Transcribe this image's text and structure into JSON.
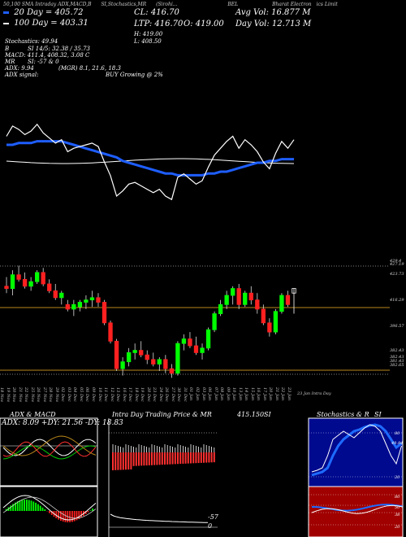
{
  "header": {
    "topline": [
      "50,100 SMA Intraday ADX,MACD,B",
      "SI,Stochastics,MR",
      "(Sirohi...",
      "BEL",
      "Bharat Electron",
      "ics Limit"
    ],
    "sma20": "20 Day = 405.72",
    "sma100": "100 Day = 403.31",
    "close": "CL: 416.70",
    "ltp": "LTP: 416.70",
    "open": "O: 419.00",
    "high": "H: 419.00",
    "low": "L: 408.50",
    "avg_vol": "Avg Vol: 16.877 M",
    "day_vol": "Day Vol: 12.713 M",
    "stoch": "Stochastics: 49.94",
    "b_label": "B",
    "si": "SI 14/5: 32.38 / 35.73",
    "macd": "MACD: 411.4, 408.32, 3.08 C",
    "mr": "MR",
    "si2": "SI: -57 & 0",
    "adx": "ADX: 9.94",
    "adx_signal": "ADX signal:",
    "mgr": "(MGR) 8.1, 21.6, 18.3",
    "buy": "BUY Growing @ 2%"
  },
  "price_labels": [
    "429.4",
    "427.19",
    "423.73",
    "416.29",
    "396.57",
    "382.43",
    "382.43",
    "381.43",
    "382.65"
  ],
  "x_dates": [
    "18 Nov",
    "19 Nov",
    "20 Nov",
    "21 Nov",
    "22 Nov",
    "25 Nov",
    "26 Nov",
    "27 Nov",
    "28 Nov",
    "29 Nov",
    "02 Dec",
    "03 Dec",
    "04 Dec",
    "05 Dec",
    "06 Dec",
    "09 Dec",
    "10 Dec",
    "11 Dec",
    "12 Dec",
    "13 Dec",
    "16 Dec",
    "17 Dec",
    "18 Dec",
    "19 Dec",
    "20 Dec",
    "23 Dec",
    "24 Dec",
    "26 Dec",
    "27 Dec",
    "30 Dec",
    "31 Dec",
    "01 Jan",
    "02 Jan",
    "03 Jan",
    "06 Jan",
    "07 Jan",
    "08 Jan",
    "09 Jan",
    "10 Jan",
    "13 Jan",
    "14 Jan",
    "15 Jan",
    "16 Jan",
    "17 Jan",
    "20 Jan",
    "21 Jan",
    "22 Jan",
    "23 Jan"
  ],
  "x_tail": "23 Jan Intra Day",
  "panels": {
    "adx_title": "ADX & MACD",
    "adx_values": "ADX: 8.09 +DY: 21.56 -DY: 18.83",
    "intraday_title": "Intra Day Trading Price & MR",
    "intraday_price": "415.150",
    "intraday_si": "SI",
    "mr_minus57": "-57",
    "mr_zero": "0",
    "stoch_title": "Stochastics & R",
    "stoch_si": "SI",
    "stoch_levels": [
      "80",
      "49.94",
      "20"
    ],
    "si_levels": [
      "80",
      "50",
      "38",
      "20"
    ]
  },
  "colors": {
    "up": "#00ff00",
    "down": "#ff2020",
    "sma": "#1e5eff",
    "orange": "#b8861b"
  },
  "chart_data": {
    "type": "candlestick",
    "dates": [
      "18 Nov",
      "19 Nov",
      "20 Nov",
      "21 Nov",
      "22 Nov",
      "25 Nov",
      "26 Nov",
      "27 Nov",
      "28 Nov",
      "29 Nov",
      "02 Dec",
      "03 Dec",
      "04 Dec",
      "05 Dec",
      "06 Dec",
      "09 Dec",
      "10 Dec",
      "11 Dec",
      "12 Dec",
      "13 Dec",
      "16 Dec",
      "17 Dec",
      "18 Dec",
      "19 Dec",
      "20 Dec",
      "23 Dec",
      "24 Dec",
      "26 Dec",
      "27 Dec",
      "30 Dec",
      "31 Dec",
      "01 Jan",
      "02 Jan",
      "03 Jan",
      "06 Jan",
      "07 Jan",
      "08 Jan",
      "09 Jan",
      "10 Jan",
      "13 Jan",
      "14 Jan",
      "15 Jan",
      "16 Jan",
      "17 Jan",
      "20 Jan",
      "21 Jan",
      "22 Jan",
      "23 Jan"
    ],
    "ohlc": [
      [
        420,
        424,
        417,
        419
      ],
      [
        419,
        427,
        416,
        425
      ],
      [
        425,
        429,
        422,
        423
      ],
      [
        423,
        426,
        419,
        420
      ],
      [
        420,
        424,
        418,
        422
      ],
      [
        422,
        427,
        421,
        426
      ],
      [
        426,
        428,
        420,
        421
      ],
      [
        421,
        423,
        417,
        418
      ],
      [
        418,
        421,
        414,
        415
      ],
      [
        415,
        418,
        412,
        417
      ],
      [
        412,
        414,
        409,
        410
      ],
      [
        410,
        414,
        407,
        412
      ],
      [
        411,
        414,
        409,
        413
      ],
      [
        413,
        416,
        410,
        414
      ],
      [
        414,
        418,
        411,
        415
      ],
      [
        415,
        417,
        411,
        413
      ],
      [
        413,
        414,
        403,
        404
      ],
      [
        404,
        405,
        395,
        396
      ],
      [
        396,
        397,
        383,
        384
      ],
      [
        384,
        389,
        381,
        387
      ],
      [
        387,
        393,
        385,
        391
      ],
      [
        391,
        395,
        388,
        392
      ],
      [
        392,
        396,
        389,
        390
      ],
      [
        390,
        392,
        386,
        388
      ],
      [
        388,
        391,
        385,
        386
      ],
      [
        386,
        389,
        383,
        388
      ],
      [
        388,
        390,
        382,
        384
      ],
      [
        384,
        386,
        380,
        382
      ],
      [
        382,
        396,
        381,
        395
      ],
      [
        395,
        399,
        392,
        397
      ],
      [
        397,
        400,
        393,
        394
      ],
      [
        394,
        398,
        390,
        391
      ],
      [
        391,
        395,
        388,
        393
      ],
      [
        393,
        402,
        392,
        401
      ],
      [
        401,
        409,
        400,
        408
      ],
      [
        408,
        414,
        407,
        412
      ],
      [
        412,
        418,
        410,
        416
      ],
      [
        416,
        420,
        412,
        419
      ],
      [
        419,
        421,
        410,
        412
      ],
      [
        412,
        418,
        411,
        417
      ],
      [
        417,
        420,
        412,
        414
      ],
      [
        414,
        417,
        408,
        410
      ],
      [
        410,
        412,
        403,
        404
      ],
      [
        404,
        406,
        398,
        400
      ],
      [
        400,
        410,
        399,
        409
      ],
      [
        409,
        417,
        408,
        416
      ],
      [
        416,
        418,
        411,
        412
      ],
      [
        419,
        419,
        408,
        417
      ]
    ],
    "sma20": [
      414,
      414,
      415,
      415,
      415,
      416,
      416,
      416,
      416,
      416,
      415,
      414,
      413,
      412,
      411,
      410,
      409,
      408,
      407,
      405,
      404,
      403,
      402,
      401,
      400,
      399,
      398,
      398,
      397,
      397,
      397,
      397,
      397,
      398,
      398,
      399,
      399,
      400,
      401,
      402,
      403,
      404,
      404,
      405,
      405,
      406,
      406,
      406
    ],
    "sma100": [
      403,
      403,
      403,
      403,
      403,
      403,
      403,
      403,
      403,
      403,
      403,
      403,
      403,
      403,
      403,
      403,
      403,
      403,
      403,
      403,
      403,
      403,
      403,
      403,
      403,
      403,
      403,
      403,
      403,
      403,
      403,
      403,
      403,
      403,
      403,
      403,
      403,
      403,
      403,
      403,
      403,
      403,
      403,
      403,
      403,
      403,
      403,
      403
    ],
    "ylim": [
      378,
      432
    ]
  }
}
